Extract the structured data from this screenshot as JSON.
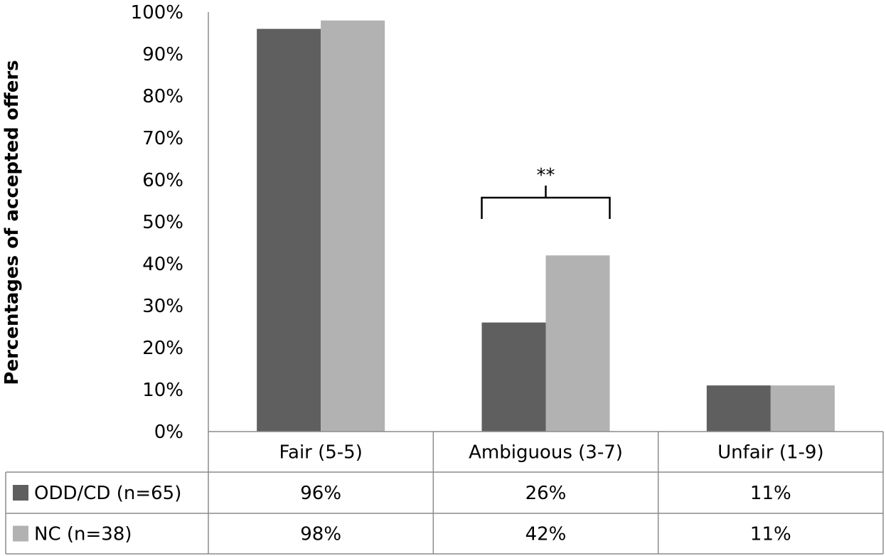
{
  "chart_data": {
    "type": "bar",
    "categories": [
      "Fair (5-5)",
      "Ambiguous (3-7)",
      "Unfair (1-9)"
    ],
    "series": [
      {
        "name": "ODD/CD (n=65)",
        "values": [
          96,
          26,
          11
        ],
        "labels": [
          "96%",
          "26%",
          "11%"
        ],
        "color": "#5f5f5f"
      },
      {
        "name": "NC (n=38)",
        "values": [
          98,
          42,
          11
        ],
        "labels": [
          "98%",
          "42%",
          "11%"
        ],
        "color": "#b2b2b2"
      }
    ],
    "ylabel": "Percentages of accepted offers",
    "ylim": [
      0,
      100
    ],
    "yticks": [
      "0%",
      "10%",
      "20%",
      "30%",
      "40%",
      "50%",
      "60%",
      "70%",
      "80%",
      "90%",
      "100%"
    ],
    "grid": false,
    "legend": "data-table",
    "annotations": [
      {
        "text": "**",
        "category": "Ambiguous (3-7)",
        "between_series": [
          "ODD/CD (n=65)",
          "NC (n=38)"
        ]
      }
    ]
  }
}
